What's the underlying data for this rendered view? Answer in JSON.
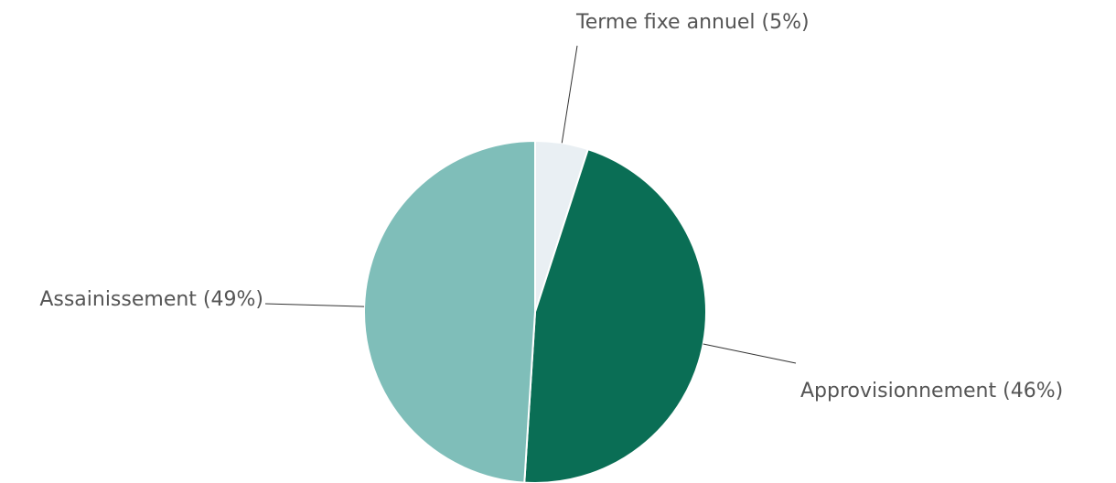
{
  "chart_data": {
    "type": "pie",
    "categories": [
      "Terme fixe annuel (5%)",
      "Approvisionnement (46%)",
      "Assainissement (49%)"
    ],
    "values": [
      5,
      46,
      49
    ],
    "colors": [
      "#e9eff3",
      "#0a6e55",
      "#7fbeb9"
    ]
  }
}
